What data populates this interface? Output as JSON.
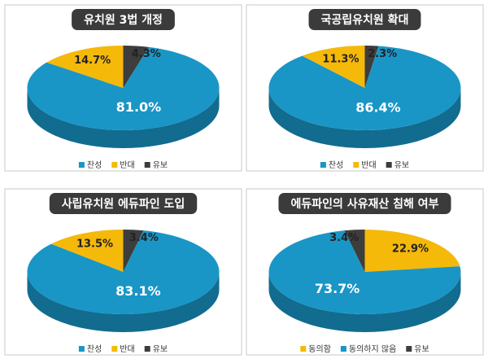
{
  "chart_data": [
    {
      "type": "pie",
      "title": "유치원 3법 개정",
      "categories": [
        "찬성",
        "반대",
        "유보"
      ],
      "values": [
        81.0,
        14.7,
        4.3
      ],
      "value_labels": [
        "81.0%",
        "14.7%",
        "4.3%"
      ],
      "colors": [
        "#1996c6",
        "#f5b90a",
        "#3d3d3d"
      ]
    },
    {
      "type": "pie",
      "title": "국공립유치원 확대",
      "categories": [
        "찬성",
        "반대",
        "유보"
      ],
      "values": [
        86.4,
        11.3,
        2.3
      ],
      "value_labels": [
        "86.4%",
        "11.3%",
        "2.3%"
      ],
      "colors": [
        "#1996c6",
        "#f5b90a",
        "#3d3d3d"
      ]
    },
    {
      "type": "pie",
      "title": "사립유치원 에듀파인 도입",
      "categories": [
        "찬성",
        "반대",
        "유보"
      ],
      "values": [
        83.1,
        13.5,
        3.4
      ],
      "value_labels": [
        "83.1%",
        "13.5%",
        "3.4%"
      ],
      "colors": [
        "#1996c6",
        "#f5b90a",
        "#3d3d3d"
      ]
    },
    {
      "type": "pie",
      "title": "에듀파인의 사유재산 침해 여부",
      "categories": [
        "동의함",
        "동의하지 않음",
        "유보"
      ],
      "values": [
        22.9,
        73.7,
        3.4
      ],
      "value_labels": [
        "22.9%",
        "73.7%",
        "3.4%"
      ],
      "colors": [
        "#f5b90a",
        "#1996c6",
        "#3d3d3d"
      ]
    }
  ]
}
